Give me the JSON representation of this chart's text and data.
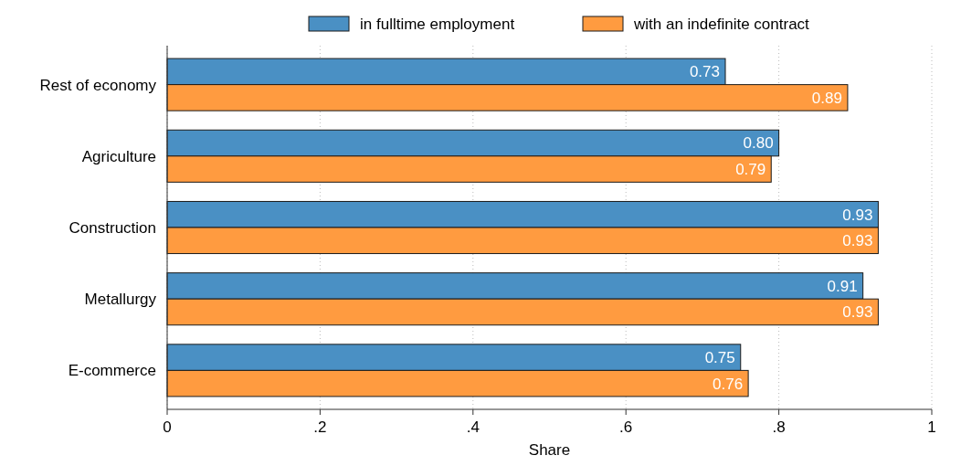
{
  "chart_data": {
    "type": "bar",
    "orientation": "horizontal",
    "xlabel": "Share",
    "categories": [
      "Rest of economy",
      "Agriculture",
      "Construction",
      "Metallurgy",
      "E-commerce"
    ],
    "series": [
      {
        "name": "in fulltime employment",
        "color": "#4a90c4",
        "values": [
          0.73,
          0.8,
          0.93,
          0.91,
          0.75
        ],
        "value_labels": [
          "0.73",
          "0.80",
          "0.93",
          "0.91",
          "0.75"
        ]
      },
      {
        "name": "with an indefinite contract",
        "color": "#ff9b40",
        "values": [
          0.89,
          0.79,
          0.93,
          0.93,
          0.76
        ],
        "value_labels": [
          "0.89",
          "0.79",
          "0.93",
          "0.93",
          "0.76"
        ]
      }
    ],
    "xlim": [
      0,
      1
    ],
    "xticks": [
      0,
      {
        "value": 0.2,
        "label": ".2"
      },
      {
        "value": 0.4,
        "label": ".4"
      },
      {
        "value": 0.6,
        "label": ".6"
      },
      {
        "value": 0.8,
        "label": ".8"
      },
      1
    ],
    "grid": "x",
    "legend": "top"
  }
}
